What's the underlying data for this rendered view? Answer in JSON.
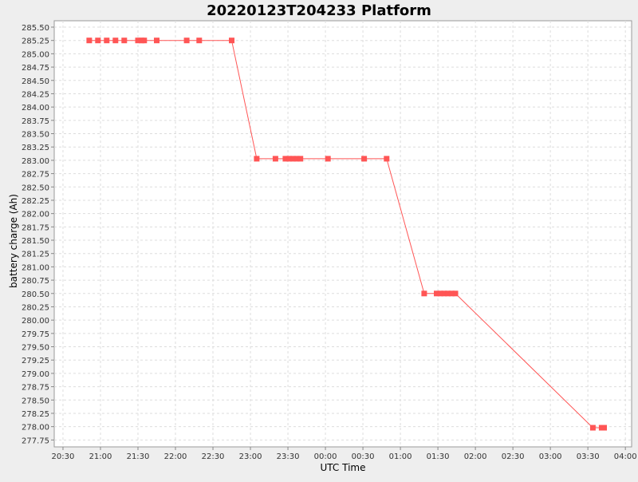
{
  "chart_data": {
    "type": "line",
    "title": "20220123T204233 Platform",
    "xlabel": "UTC Time",
    "ylabel": "battery charge (Ah)",
    "x_ticks": [
      "20:30",
      "21:00",
      "21:30",
      "22:00",
      "22:30",
      "23:00",
      "23:30",
      "00:00",
      "00:30",
      "01:00",
      "01:30",
      "02:00",
      "02:30",
      "03:00",
      "03:30",
      "04:00"
    ],
    "xlim": [
      "2022-01-23T20:23",
      "2022-01-24T04:05"
    ],
    "y_ticks": [
      "277.75",
      "278.00",
      "278.25",
      "278.50",
      "278.75",
      "279.00",
      "279.25",
      "279.50",
      "279.75",
      "280.00",
      "280.25",
      "280.50",
      "280.75",
      "281.00",
      "281.25",
      "281.50",
      "281.75",
      "282.00",
      "282.25",
      "282.50",
      "282.75",
      "283.00",
      "283.25",
      "283.50",
      "283.75",
      "284.00",
      "284.25",
      "284.50",
      "284.75",
      "285.00",
      "285.25",
      "285.50"
    ],
    "ylim": [
      277.62,
      285.62
    ],
    "grid": true,
    "series_color": "#ff5555",
    "series": [
      {
        "x": [
          "2022-01-23T20:51",
          "2022-01-23T20:58",
          "2022-01-23T21:05",
          "2022-01-23T21:12",
          "2022-01-23T21:19",
          "2022-01-23T21:30",
          "2022-01-23T21:33",
          "2022-01-23T21:35",
          "2022-01-23T21:45",
          "2022-01-23T22:09",
          "2022-01-23T22:19",
          "2022-01-23T22:45",
          "2022-01-23T23:05",
          "2022-01-23T23:20",
          "2022-01-23T23:28",
          "2022-01-23T23:31",
          "2022-01-23T23:34",
          "2022-01-23T23:37",
          "2022-01-23T23:40",
          "2022-01-24T00:02",
          "2022-01-24T00:31",
          "2022-01-24T00:49",
          "2022-01-24T01:19",
          "2022-01-24T01:29",
          "2022-01-24T01:32",
          "2022-01-24T01:35",
          "2022-01-24T01:38",
          "2022-01-24T01:41",
          "2022-01-24T01:44",
          "2022-01-24T03:34",
          "2022-01-24T03:41",
          "2022-01-24T03:43"
        ],
        "y": [
          285.25,
          285.25,
          285.25,
          285.25,
          285.25,
          285.25,
          285.25,
          285.25,
          285.25,
          285.25,
          285.25,
          285.25,
          283.03,
          283.03,
          283.03,
          283.03,
          283.03,
          283.03,
          283.03,
          283.03,
          283.03,
          283.03,
          280.5,
          280.5,
          280.5,
          280.5,
          280.5,
          280.5,
          280.5,
          277.98,
          277.98,
          277.98
        ]
      }
    ]
  }
}
